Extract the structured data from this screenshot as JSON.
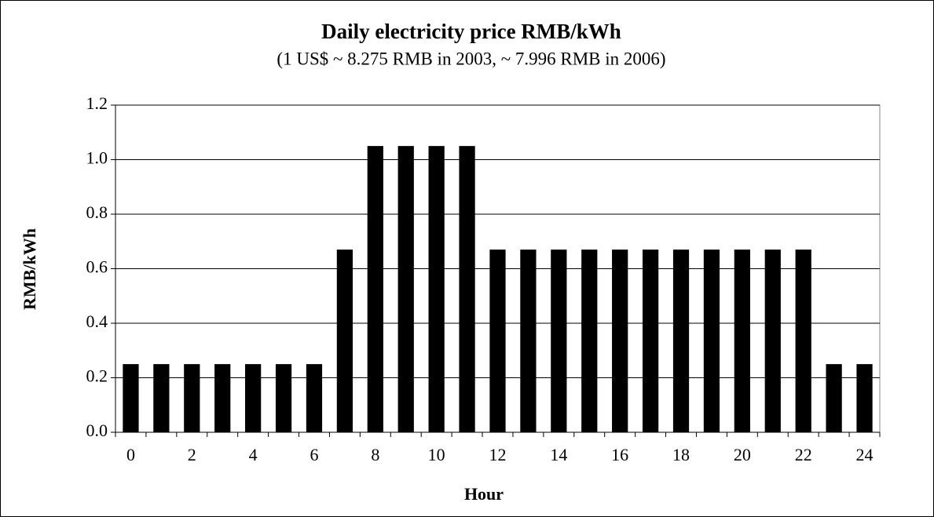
{
  "chart_data": {
    "type": "bar",
    "title": "Daily electricity price RMB/kWh",
    "subtitle": "(1 US$ ~ 8.275 RMB in 2003, ~ 7.996 RMB in 2006)",
    "x_label": "Hour",
    "y_label": "RMB/kWh",
    "categories": [
      "0",
      null,
      "2",
      null,
      "4",
      null,
      "6",
      null,
      "8",
      null,
      "10",
      null,
      "12",
      null,
      "14",
      null,
      "16",
      null,
      "18",
      null,
      "20",
      null,
      "22",
      null,
      "24"
    ],
    "values": [
      0.25,
      0.25,
      0.25,
      0.25,
      0.25,
      0.25,
      0.25,
      0.67,
      1.05,
      1.05,
      1.05,
      1.05,
      0.67,
      0.67,
      0.67,
      0.67,
      0.67,
      0.67,
      0.67,
      0.67,
      0.67,
      0.67,
      0.67,
      0.25,
      0.25
    ],
    "color": "#000000",
    "ylim": [
      0,
      1.2
    ],
    "yticks": [
      {
        "value": 0,
        "label": "0.0"
      },
      0.2,
      0.4,
      0.6,
      0.8,
      {
        "value": 1,
        "label": "1.0"
      },
      1.2
    ],
    "grid": true
  }
}
